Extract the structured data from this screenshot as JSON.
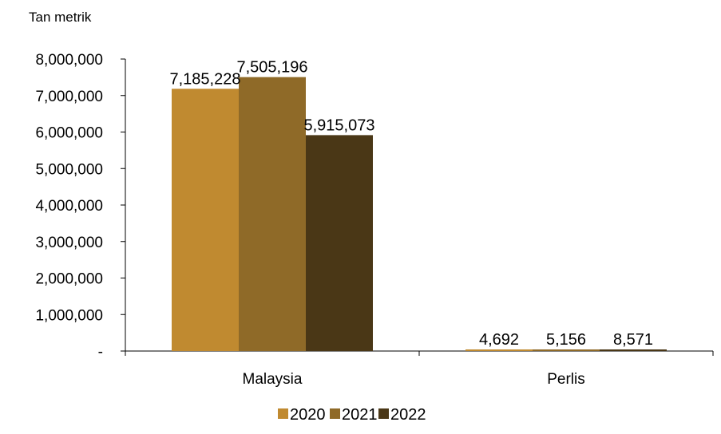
{
  "chart_data": {
    "type": "bar",
    "title": "",
    "unit_label": "Tan metrik",
    "xlabel": "",
    "ylabel": "",
    "categories": [
      "Malaysia",
      "Perlis"
    ],
    "series": [
      {
        "name": "2020",
        "color": "#C08A30",
        "values": [
          7185228,
          4692
        ],
        "value_labels": [
          "7,185,228",
          "4,692"
        ]
      },
      {
        "name": "2021",
        "color": "#8F6A28",
        "values": [
          7505196,
          5156
        ],
        "value_labels": [
          "7,505,196",
          "5,156"
        ]
      },
      {
        "name": "2022",
        "color": "#4A3716",
        "values": [
          5915073,
          8571
        ],
        "value_labels": [
          "5,915,073",
          "8,571"
        ]
      }
    ],
    "ylim": [
      0,
      8000000
    ],
    "yticks": [
      0,
      1000000,
      2000000,
      3000000,
      4000000,
      5000000,
      6000000,
      7000000,
      8000000
    ],
    "ytick_labels": [
      "-",
      "1,000,000",
      "2,000,000",
      "3,000,000",
      "4,000,000",
      "5,000,000",
      "6,000,000",
      "7,000,000",
      "8,000,000"
    ],
    "grid": false,
    "legend_position": "bottom"
  }
}
